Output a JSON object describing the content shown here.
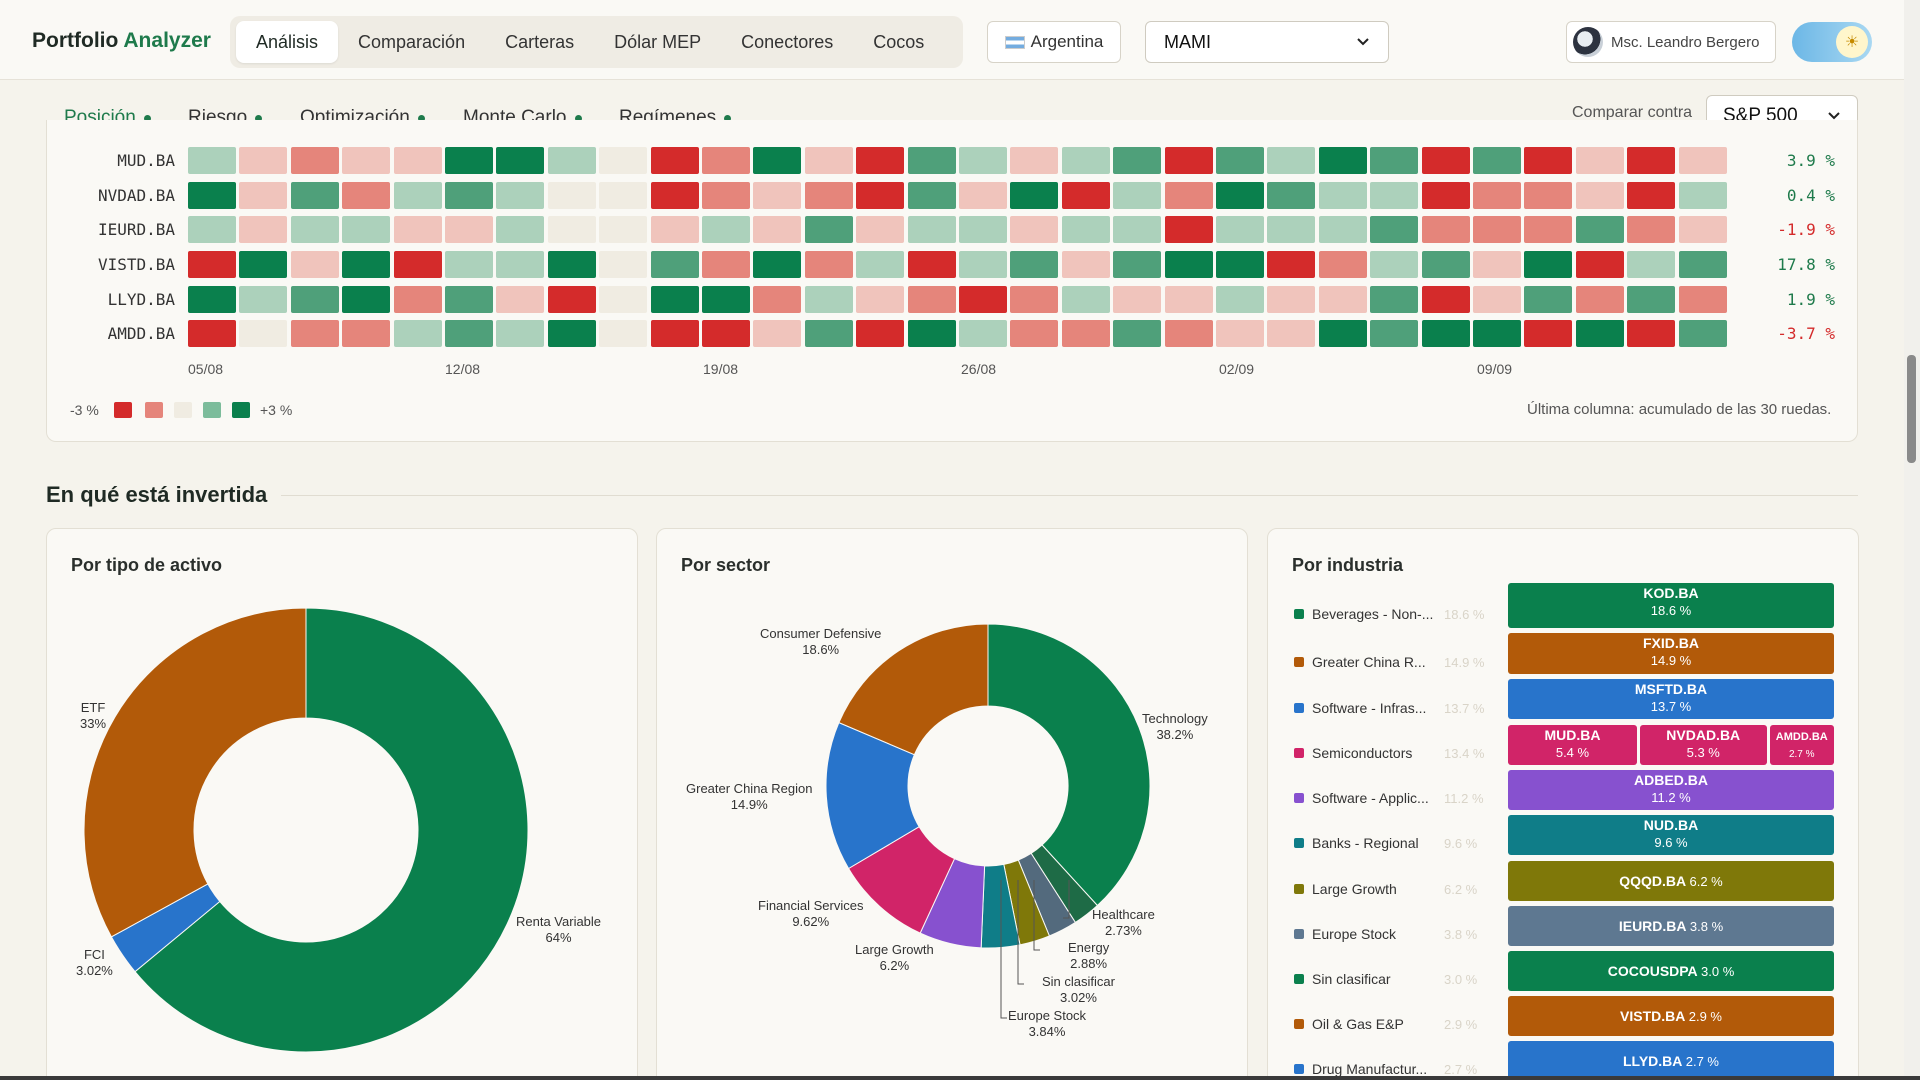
{
  "brand": {
    "name": "Portfolio",
    "accent": "Analyzer"
  },
  "nav": {
    "tabs": [
      {
        "label": "Análisis",
        "active": true
      },
      {
        "label": "Comparación"
      },
      {
        "label": "Carteras"
      },
      {
        "label": "Dólar MEP"
      },
      {
        "label": "Conectores"
      },
      {
        "label": "Cocos"
      }
    ]
  },
  "country": {
    "label": "Argentina"
  },
  "portfolio": {
    "selected": "MAMI"
  },
  "user": {
    "name": "Msc. Leandro Bergero"
  },
  "subtabs": [
    {
      "label": "Posición",
      "active": true
    },
    {
      "label": "Riesgo"
    },
    {
      "label": "Optimización"
    },
    {
      "label": "Monte Carlo"
    },
    {
      "label": "Regímenes"
    }
  ],
  "compare": {
    "label": "Comparar contra",
    "selected": "S&P 500"
  },
  "heatmap": {
    "rows": [
      {
        "ticker": "MUD.BA",
        "total": "3.9 %",
        "cells": [
          1,
          -1,
          -2,
          -1,
          -1,
          3,
          3,
          1,
          0,
          -3,
          -2,
          3,
          -1,
          -3,
          2,
          1,
          -1,
          1,
          2,
          -3,
          2,
          1,
          3,
          2,
          -3,
          2,
          -3,
          -1,
          -3,
          -1
        ]
      },
      {
        "ticker": "NVDAD.BA",
        "total": "0.4 %",
        "cells": [
          3,
          -1,
          2,
          -2,
          1,
          2,
          1,
          0,
          0,
          -3,
          -2,
          -1,
          -2,
          -3,
          2,
          -1,
          3,
          -3,
          1,
          -2,
          3,
          2,
          1,
          1,
          -3,
          -2,
          -2,
          -1,
          -3,
          1
        ]
      },
      {
        "ticker": "IEURD.BA",
        "total": "-1.9 %",
        "cells": [
          1,
          -1,
          1,
          1,
          -1,
          -1,
          1,
          0,
          0,
          -1,
          1,
          -1,
          2,
          -1,
          1,
          1,
          -1,
          1,
          1,
          -3,
          1,
          1,
          1,
          2,
          -2,
          -2,
          -2,
          2,
          -2,
          -1
        ]
      },
      {
        "ticker": "VISTD.BA",
        "total": "17.8 %",
        "cells": [
          -3,
          3,
          -1,
          3,
          -3,
          1,
          1,
          3,
          0,
          2,
          -2,
          3,
          -2,
          1,
          -3,
          1,
          2,
          -1,
          2,
          3,
          3,
          -3,
          -2,
          1,
          2,
          -1,
          3,
          -3,
          1,
          2
        ]
      },
      {
        "ticker": "LLYD.BA",
        "total": "1.9 %",
        "cells": [
          3,
          1,
          2,
          3,
          -2,
          2,
          -1,
          -3,
          0,
          3,
          3,
          -2,
          1,
          -1,
          -2,
          -3,
          -2,
          1,
          -1,
          -1,
          1,
          -1,
          -1,
          2,
          -3,
          -1,
          2,
          -2,
          2,
          -2
        ]
      },
      {
        "ticker": "AMDD.BA",
        "total": "-3.7 %",
        "cells": [
          -3,
          0,
          -2,
          -2,
          1,
          2,
          1,
          3,
          0,
          -3,
          -3,
          -1,
          2,
          -3,
          3,
          1,
          -2,
          -2,
          2,
          -2,
          -1,
          -1,
          3,
          2,
          3,
          3,
          -3,
          3,
          -3,
          2
        ]
      }
    ],
    "dates": [
      "05/08",
      "12/08",
      "19/08",
      "26/08",
      "02/09",
      "09/09"
    ],
    "legend": {
      "min": "-3 %",
      "max": "+3 %"
    },
    "note": "Última columna: acumulado de las 30 ruedas."
  },
  "section": {
    "title": "En qué está invertida"
  },
  "colors": {
    "green": "#0a804d",
    "orange": "#b25a09",
    "blue": "#2874cb",
    "pink": "#d12468",
    "purple": "#8751cf",
    "teal": "#0f7d88",
    "olive": "#7f7809",
    "slate": "#5e7891"
  },
  "asset_type": {
    "title": "Por tipo de activo",
    "slices": [
      {
        "name": "Renta Variable",
        "value": 64,
        "label": "64%",
        "color": "#0a804d"
      },
      {
        "name": "FCI",
        "value": 3.02,
        "label": "3.02%",
        "color": "#2874cb"
      },
      {
        "name": "ETF",
        "value": 33,
        "label": "33%",
        "color": "#b25a09"
      }
    ]
  },
  "sector": {
    "title": "Por sector",
    "slices": [
      {
        "name": "Technology",
        "value": 38.2,
        "label": "38.2%",
        "color": "#0a804d"
      },
      {
        "name": "Healthcare",
        "value": 2.73,
        "label": "2.73%",
        "color": "#1e6b46"
      },
      {
        "name": "Energy",
        "value": 2.88,
        "label": "2.88%",
        "color": "#536a7d"
      },
      {
        "name": "Sin clasificar",
        "value": 3.02,
        "label": "3.02%",
        "color": "#7f7809"
      },
      {
        "name": "Europe Stock",
        "value": 3.84,
        "label": "3.84%",
        "color": "#0f7d88"
      },
      {
        "name": "Large Growth",
        "value": 6.2,
        "label": "6.2%",
        "color": "#8751cf"
      },
      {
        "name": "Financial Services",
        "value": 9.62,
        "label": "9.62%",
        "color": "#d12468"
      },
      {
        "name": "Greater China Region",
        "value": 14.9,
        "label": "14.9%",
        "color": "#2874cb"
      },
      {
        "name": "Consumer Defensive",
        "value": 18.6,
        "label": "18.6%",
        "color": "#b25a09"
      }
    ]
  },
  "industry": {
    "title": "Por industria",
    "items": [
      {
        "name": "Beverages - Non-...",
        "pct": "18.6 %",
        "color": "#0a804d"
      },
      {
        "name": "Greater China R...",
        "pct": "14.9 %",
        "color": "#b25a09"
      },
      {
        "name": "Software - Infras...",
        "pct": "13.7 %",
        "color": "#2874cb"
      },
      {
        "name": "Semiconductors",
        "pct": "13.4 %",
        "color": "#d12468"
      },
      {
        "name": "Software - Applic...",
        "pct": "11.2 %",
        "color": "#8751cf"
      },
      {
        "name": "Banks - Regional",
        "pct": "9.6 %",
        "color": "#0f7d88"
      },
      {
        "name": "Large Growth",
        "pct": "6.2 %",
        "color": "#7f7809"
      },
      {
        "name": "Europe Stock",
        "pct": "3.8 %",
        "color": "#5e7891"
      },
      {
        "name": "Sin clasificar",
        "pct": "3.0 %",
        "color": "#0a804d"
      },
      {
        "name": "Oil & Gas E&P",
        "pct": "2.9 %",
        "color": "#b25a09"
      },
      {
        "name": "Drug Manufactur...",
        "pct": "2.7 %",
        "color": "#2874cb"
      }
    ],
    "tiles": [
      [
        {
          "name": "KOD.BA",
          "pct": "18.6 %",
          "value": 18.6
        }
      ],
      [
        {
          "name": "FXID.BA",
          "pct": "14.9 %",
          "value": 14.9
        }
      ],
      [
        {
          "name": "MSFTD.BA",
          "pct": "13.7 %",
          "value": 13.7
        }
      ],
      [
        {
          "name": "MUD.BA",
          "pct": "5.4 %",
          "value": 5.4
        },
        {
          "name": "NVDAD.BA",
          "pct": "5.3 %",
          "value": 5.3
        },
        {
          "name": "AMDD.BA",
          "pct": "2.7 %",
          "value": 2.7
        }
      ],
      [
        {
          "name": "ADBED.BA",
          "pct": "11.2 %",
          "value": 11.2
        }
      ],
      [
        {
          "name": "NUD.BA",
          "pct": "9.6 %",
          "value": 9.6
        }
      ],
      [
        {
          "name": "QQQD.BA",
          "pct": "6.2 %",
          "value": 6.2
        }
      ],
      [
        {
          "name": "IEURD.BA",
          "pct": "3.8 %",
          "value": 3.8
        }
      ],
      [
        {
          "name": "COCOUSDPA",
          "pct": "3.0 %",
          "value": 3.0
        }
      ],
      [
        {
          "name": "VISTD.BA",
          "pct": "2.9 %",
          "value": 2.9
        }
      ],
      [
        {
          "name": "LLYD.BA",
          "pct": "2.7 %",
          "value": 2.7
        }
      ]
    ]
  }
}
